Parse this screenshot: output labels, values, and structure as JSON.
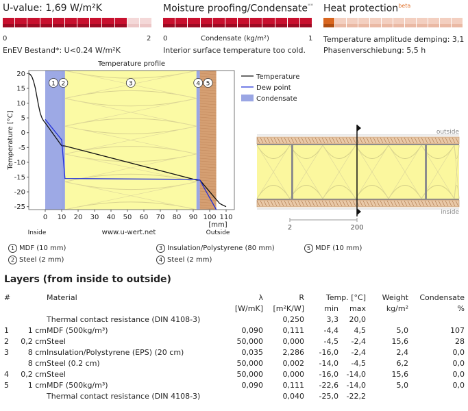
{
  "uvalue": {
    "title": "U-value: 1,69 W/m²K",
    "scale_min": "0",
    "scale_max": "2",
    "note": "EnEV Bestand*: U<0.24 W/m²K",
    "fill_fraction": 0.845
  },
  "moisture": {
    "title": "Moisture proofing/Condensate",
    "sup": "**",
    "scale_min": "0",
    "scale_label": "Condensate (kg/m²)",
    "scale_max": "1",
    "note": "Interior surface temperature too cold.",
    "fill_fraction": 1.0
  },
  "heat": {
    "title": "Heat protection",
    "sup": "beta",
    "line1": "Temperature amplitude demping: 3,1",
    "line2": "Phasenverschiebung: 5,5 h",
    "fill_fraction": 0.12
  },
  "chart_data": {
    "type": "line",
    "title": "Temperature profile",
    "ylabel": "Temperature [°C]",
    "xlabel": "[mm]",
    "xlim": [
      -10,
      115
    ],
    "ylim": [
      -26,
      21
    ],
    "xticks": [
      "0",
      "10",
      "20",
      "30",
      "40",
      "50",
      "60",
      "70",
      "80",
      "90",
      "100",
      "110"
    ],
    "yticks": [
      "20",
      "15",
      "10",
      "5",
      "0",
      "-5",
      "-10",
      "-15",
      "-20",
      "-25"
    ],
    "inside_label": "Inside",
    "outside_label": "Outside",
    "watermark": "www.u-wert.net",
    "legend": [
      "Temperature",
      "Dew point",
      "Condensate"
    ],
    "layer_markers": [
      "1",
      "2",
      "3",
      "4",
      "5"
    ],
    "series": [
      {
        "name": "Temperature",
        "x": [
          -10,
          -9,
          -8,
          -7,
          -6,
          -5,
          -4,
          -3,
          -2,
          -1,
          0,
          10,
          12,
          92,
          94,
          104,
          105,
          106,
          108,
          110
        ],
        "y": [
          20,
          19.6,
          18.8,
          17.2,
          15,
          12,
          9,
          6.5,
          5,
          4,
          3.3,
          -4.4,
          -4.5,
          -16,
          -16,
          -22.6,
          -23.2,
          -23.9,
          -24.5,
          -25
        ]
      },
      {
        "name": "Dew point",
        "x": [
          -10,
          0,
          0,
          10,
          10,
          12,
          92,
          94,
          104
        ],
        "y": [
          null,
          null,
          4.5,
          -2.4,
          -2.4,
          -15.5,
          -15.8,
          -16.0,
          -26
        ]
      }
    ],
    "layers_mm": [
      [
        0,
        10
      ],
      [
        10,
        12
      ],
      [
        12,
        92
      ],
      [
        92,
        94
      ],
      [
        94,
        104
      ]
    ],
    "condensate_zones_mm": [
      [
        0,
        12
      ],
      [
        92,
        94
      ]
    ]
  },
  "cross_section": {
    "outside_label": "outside",
    "inside_label": "inside",
    "scale_left": "2",
    "scale_mid": "200"
  },
  "layer_legend": [
    {
      "n": "1",
      "label": "MDF (10 mm)"
    },
    {
      "n": "2",
      "label": "Steel (2 mm)"
    },
    {
      "n": "3",
      "label": "Insulation/Polystyrene (80 mm)"
    },
    {
      "n": "4",
      "label": "Steel (2 mm)"
    },
    {
      "n": "5",
      "label": "MDF (10 mm)"
    }
  ],
  "table": {
    "heading": "Layers (from inside to outside)",
    "headers": {
      "num": "#",
      "material": "Material",
      "lambda": "λ",
      "lambda_unit": "[W/mK]",
      "r": "R",
      "r_unit": "[m²K/W]",
      "temp": "Temp. [°C]",
      "min": "min",
      "max": "max",
      "weight": "Weight",
      "weight_unit": "kg/m²",
      "cond": "Condensate",
      "cond_unit": "%"
    },
    "rows": [
      {
        "n": "",
        "thick": "",
        "material": "Thermal contact resistance (DIN 4108-3)",
        "lambda": "",
        "r": "0,250",
        "min": "3,3",
        "max": "20,0",
        "weight": "",
        "cond": ""
      },
      {
        "n": "1",
        "thick": "1 cm",
        "material": "MDF (500kg/m³)",
        "lambda": "0,090",
        "r": "0,111",
        "min": "-4,4",
        "max": "4,5",
        "weight": "5,0",
        "cond": "107"
      },
      {
        "n": "2",
        "thick": "0,2 cm",
        "material": "Steel",
        "lambda": "50,000",
        "r": "0,000",
        "min": "-4,5",
        "max": "-2,4",
        "weight": "15,6",
        "cond": "28"
      },
      {
        "n": "3",
        "thick": "8 cm",
        "material": "Insulation/Polystyrene (EPS) (20 cm)",
        "lambda": "0,035",
        "r": "2,286",
        "min": "-16,0",
        "max": "-2,4",
        "weight": "2,4",
        "cond": "0,0"
      },
      {
        "n": "",
        "thick": "8 cm",
        "material": "Steel (0.2 cm)",
        "lambda": "50,000",
        "r": "0,002",
        "min": "-14,0",
        "max": "-4,5",
        "weight": "6,2",
        "cond": "0,0"
      },
      {
        "n": "4",
        "thick": "0,2 cm",
        "material": "Steel",
        "lambda": "50,000",
        "r": "0,000",
        "min": "-16,0",
        "max": "-14,0",
        "weight": "15,6",
        "cond": "0,0"
      },
      {
        "n": "5",
        "thick": "1 cm",
        "material": "MDF (500kg/m³)",
        "lambda": "0,090",
        "r": "0,111",
        "min": "-22,6",
        "max": "-14,0",
        "weight": "5,0",
        "cond": "0,0"
      },
      {
        "n": "",
        "thick": "",
        "material": "Thermal contact resistance (DIN 4108-3)",
        "lambda": "",
        "r": "0,040",
        "min": "-25,0",
        "max": "-22,2",
        "weight": "",
        "cond": ""
      }
    ]
  }
}
